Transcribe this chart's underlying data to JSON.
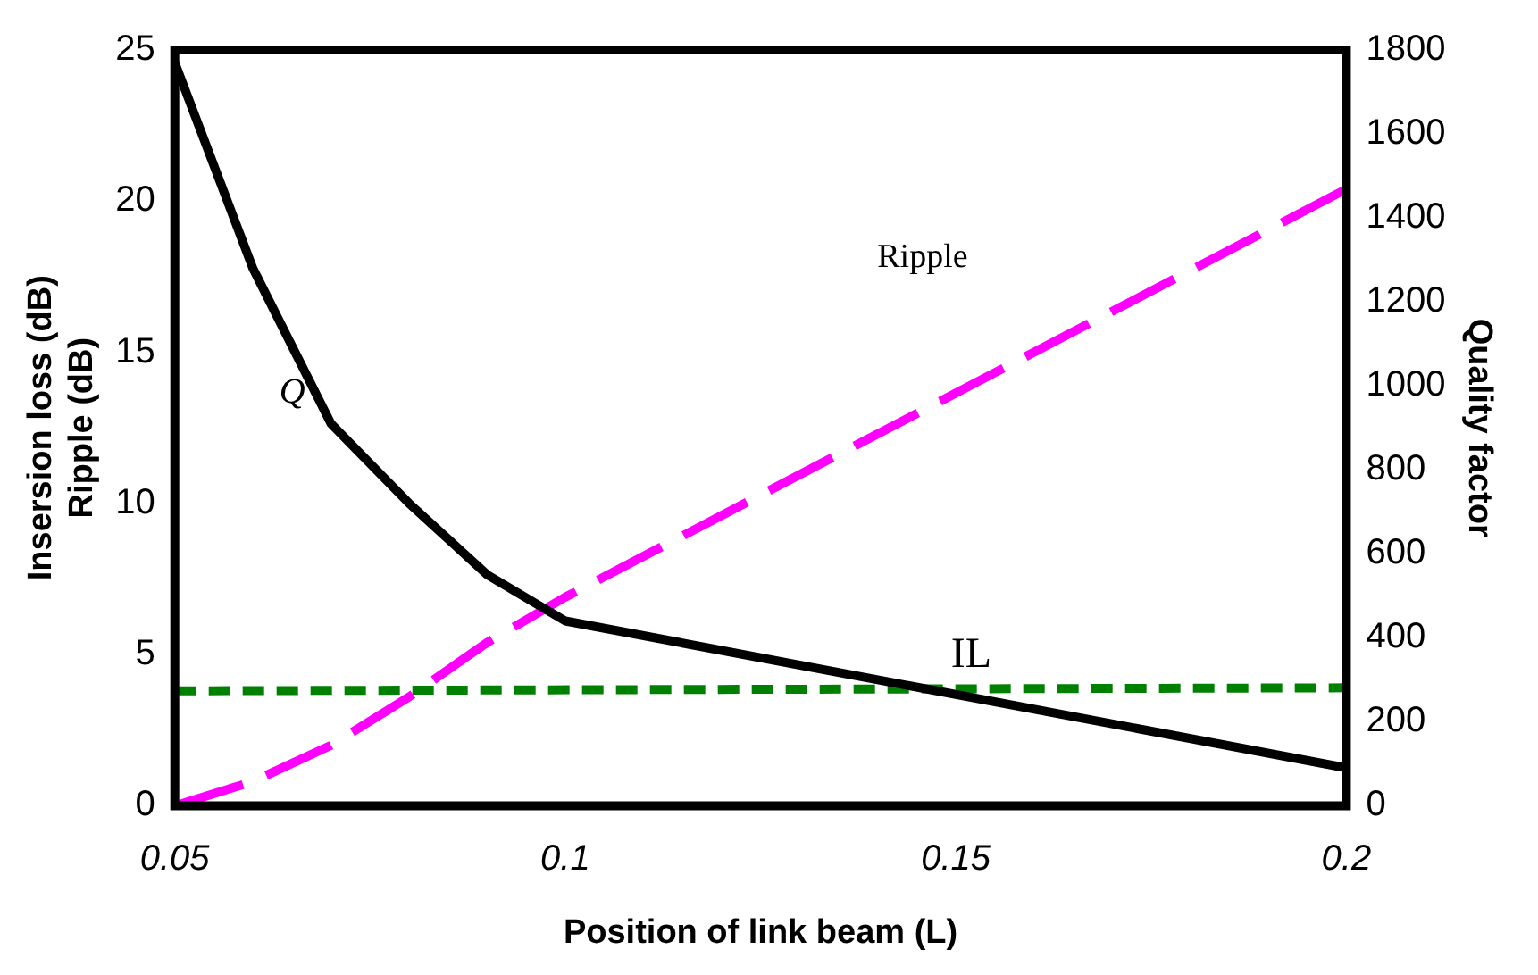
{
  "chart_data": {
    "type": "line",
    "xlabel": "Position of link beam (L)",
    "ylabel": "Insersion loss (dB)\nRipple (dB)",
    "y2label": "Quality factor",
    "xlim": [
      0.05,
      0.2
    ],
    "xticks": [
      0.05,
      0.1,
      0.15,
      0.2
    ],
    "ylim": [
      0,
      25
    ],
    "yticks": [
      0,
      5,
      10,
      15,
      20,
      25
    ],
    "y2lim": [
      0,
      1800
    ],
    "y2ticks": [
      0,
      200,
      400,
      600,
      800,
      1000,
      1200,
      1400,
      1600,
      1800
    ],
    "grid": false,
    "legend": false,
    "marker": "none",
    "series": [
      {
        "name": "Q",
        "axis": "y2",
        "color": "#000000",
        "line_style": "solid",
        "x": [
          0.05,
          0.06,
          0.07,
          0.08,
          0.09,
          0.1,
          0.2
        ],
        "values": [
          1770,
          1280,
          910,
          720,
          550,
          440,
          90
        ]
      },
      {
        "name": "Ripple",
        "color": "#ff00ff",
        "line_style": "dashed",
        "x": [
          0.05,
          0.06,
          0.07,
          0.08,
          0.09,
          0.1,
          0.2
        ],
        "values": [
          0,
          0.8,
          2,
          3.6,
          5.4,
          6.9,
          20.4
        ]
      },
      {
        "name": "IL",
        "color": "#008000",
        "line_style": "dotted",
        "x": [
          0.05,
          0.2
        ],
        "values": [
          3.8,
          3.9
        ]
      }
    ]
  }
}
